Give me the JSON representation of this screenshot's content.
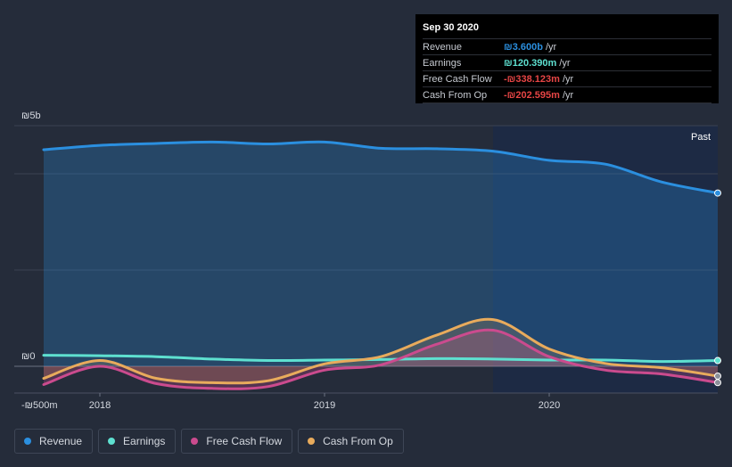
{
  "chart_data": {
    "type": "line",
    "title": "",
    "period_label": "Past",
    "y_unit": "₪",
    "ylim": [
      -500,
      5000
    ],
    "y_ticks": [
      {
        "value": 5000,
        "label": "₪5b"
      },
      {
        "value": 0,
        "label": "₪0"
      },
      {
        "value": -500,
        "label": "-₪500m"
      }
    ],
    "x_ticks": [
      {
        "value": 2018.0,
        "label": "2018"
      },
      {
        "value": 2019.0,
        "label": "2019"
      },
      {
        "value": 2020.0,
        "label": "2020"
      }
    ],
    "x_range": [
      2017.73,
      2020.75
    ],
    "highlight_from": 2019.75,
    "series": [
      {
        "name": "Revenue",
        "color": "#2b8fdf",
        "fill": true,
        "x": [
          2017.75,
          2018.0,
          2018.25,
          2018.5,
          2018.75,
          2019.0,
          2019.25,
          2019.5,
          2019.75,
          2020.0,
          2020.25,
          2020.5,
          2020.75
        ],
        "values": [
          4500,
          4590,
          4630,
          4660,
          4620,
          4660,
          4530,
          4520,
          4470,
          4280,
          4200,
          3830,
          3600
        ]
      },
      {
        "name": "Earnings",
        "color": "#5ee0d0",
        "fill": false,
        "x": [
          2017.75,
          2018.0,
          2018.25,
          2018.5,
          2018.75,
          2019.0,
          2019.25,
          2019.5,
          2019.75,
          2020.0,
          2020.25,
          2020.5,
          2020.75
        ],
        "values": [
          230,
          220,
          200,
          150,
          120,
          130,
          140,
          160,
          150,
          130,
          130,
          100,
          120
        ]
      },
      {
        "name": "Free Cash Flow",
        "color": "#cb4b8e",
        "fill": true,
        "x": [
          2017.75,
          2018.0,
          2018.25,
          2018.5,
          2018.75,
          2019.0,
          2019.25,
          2019.5,
          2019.75,
          2020.0,
          2020.25,
          2020.5,
          2020.75
        ],
        "values": [
          -380,
          0,
          -360,
          -460,
          -420,
          -80,
          30,
          460,
          750,
          200,
          -80,
          -160,
          -338
        ]
      },
      {
        "name": "Cash From Op",
        "color": "#e8ab5c",
        "fill": true,
        "x": [
          2017.75,
          2018.0,
          2018.25,
          2018.5,
          2018.75,
          2019.0,
          2019.25,
          2019.5,
          2019.75,
          2020.0,
          2020.25,
          2020.5,
          2020.75
        ],
        "values": [
          -250,
          120,
          -250,
          -340,
          -300,
          50,
          200,
          650,
          970,
          360,
          60,
          -30,
          -203
        ]
      }
    ]
  },
  "tooltip": {
    "date": "Sep 30 2020",
    "rows": [
      {
        "label": "Revenue",
        "value": "₪3.600b",
        "unit": "/yr",
        "color": "#2b8fdf"
      },
      {
        "label": "Earnings",
        "value": "₪120.390m",
        "unit": "/yr",
        "color": "#5ee0d0"
      },
      {
        "label": "Free Cash Flow",
        "value": "-₪338.123m",
        "unit": "/yr",
        "color": "#e64545"
      },
      {
        "label": "Cash From Op",
        "value": "-₪202.595m",
        "unit": "/yr",
        "color": "#e64545"
      }
    ]
  },
  "legend": [
    {
      "label": "Revenue",
      "color": "#2b8fdf"
    },
    {
      "label": "Earnings",
      "color": "#5ee0d0"
    },
    {
      "label": "Free Cash Flow",
      "color": "#cb4b8e"
    },
    {
      "label": "Cash From Op",
      "color": "#e8ab5c"
    }
  ]
}
